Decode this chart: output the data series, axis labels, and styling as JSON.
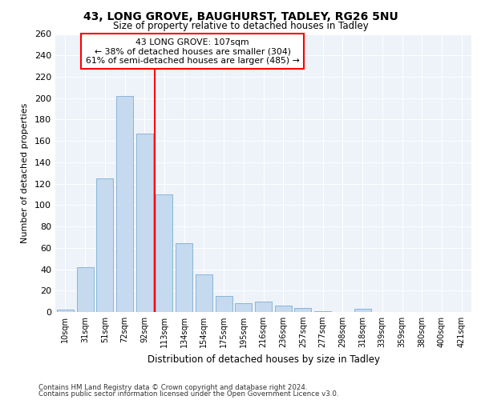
{
  "title1": "43, LONG GROVE, BAUGHURST, TADLEY, RG26 5NU",
  "title2": "Size of property relative to detached houses in Tadley",
  "xlabel": "Distribution of detached houses by size in Tadley",
  "ylabel": "Number of detached properties",
  "categories": [
    "10sqm",
    "31sqm",
    "51sqm",
    "72sqm",
    "92sqm",
    "113sqm",
    "134sqm",
    "154sqm",
    "175sqm",
    "195sqm",
    "216sqm",
    "236sqm",
    "257sqm",
    "277sqm",
    "298sqm",
    "318sqm",
    "339sqm",
    "359sqm",
    "380sqm",
    "400sqm",
    "421sqm"
  ],
  "values": [
    2,
    42,
    125,
    202,
    167,
    110,
    64,
    35,
    15,
    8,
    10,
    6,
    4,
    1,
    0,
    3,
    0,
    0,
    0,
    0,
    0
  ],
  "bar_color": "#c5d9ef",
  "bar_edge_color": "#7bafd4",
  "vline_x": 4.5,
  "vline_color": "red",
  "annotation_text": "43 LONG GROVE: 107sqm\n← 38% of detached houses are smaller (304)\n61% of semi-detached houses are larger (485) →",
  "annotation_box_color": "white",
  "annotation_box_edge": "red",
  "ylim": [
    0,
    260
  ],
  "yticks": [
    0,
    20,
    40,
    60,
    80,
    100,
    120,
    140,
    160,
    180,
    200,
    220,
    240,
    260
  ],
  "bg_color": "#eef2f9",
  "footer1": "Contains HM Land Registry data © Crown copyright and database right 2024.",
  "footer2": "Contains public sector information licensed under the Open Government Licence v3.0."
}
